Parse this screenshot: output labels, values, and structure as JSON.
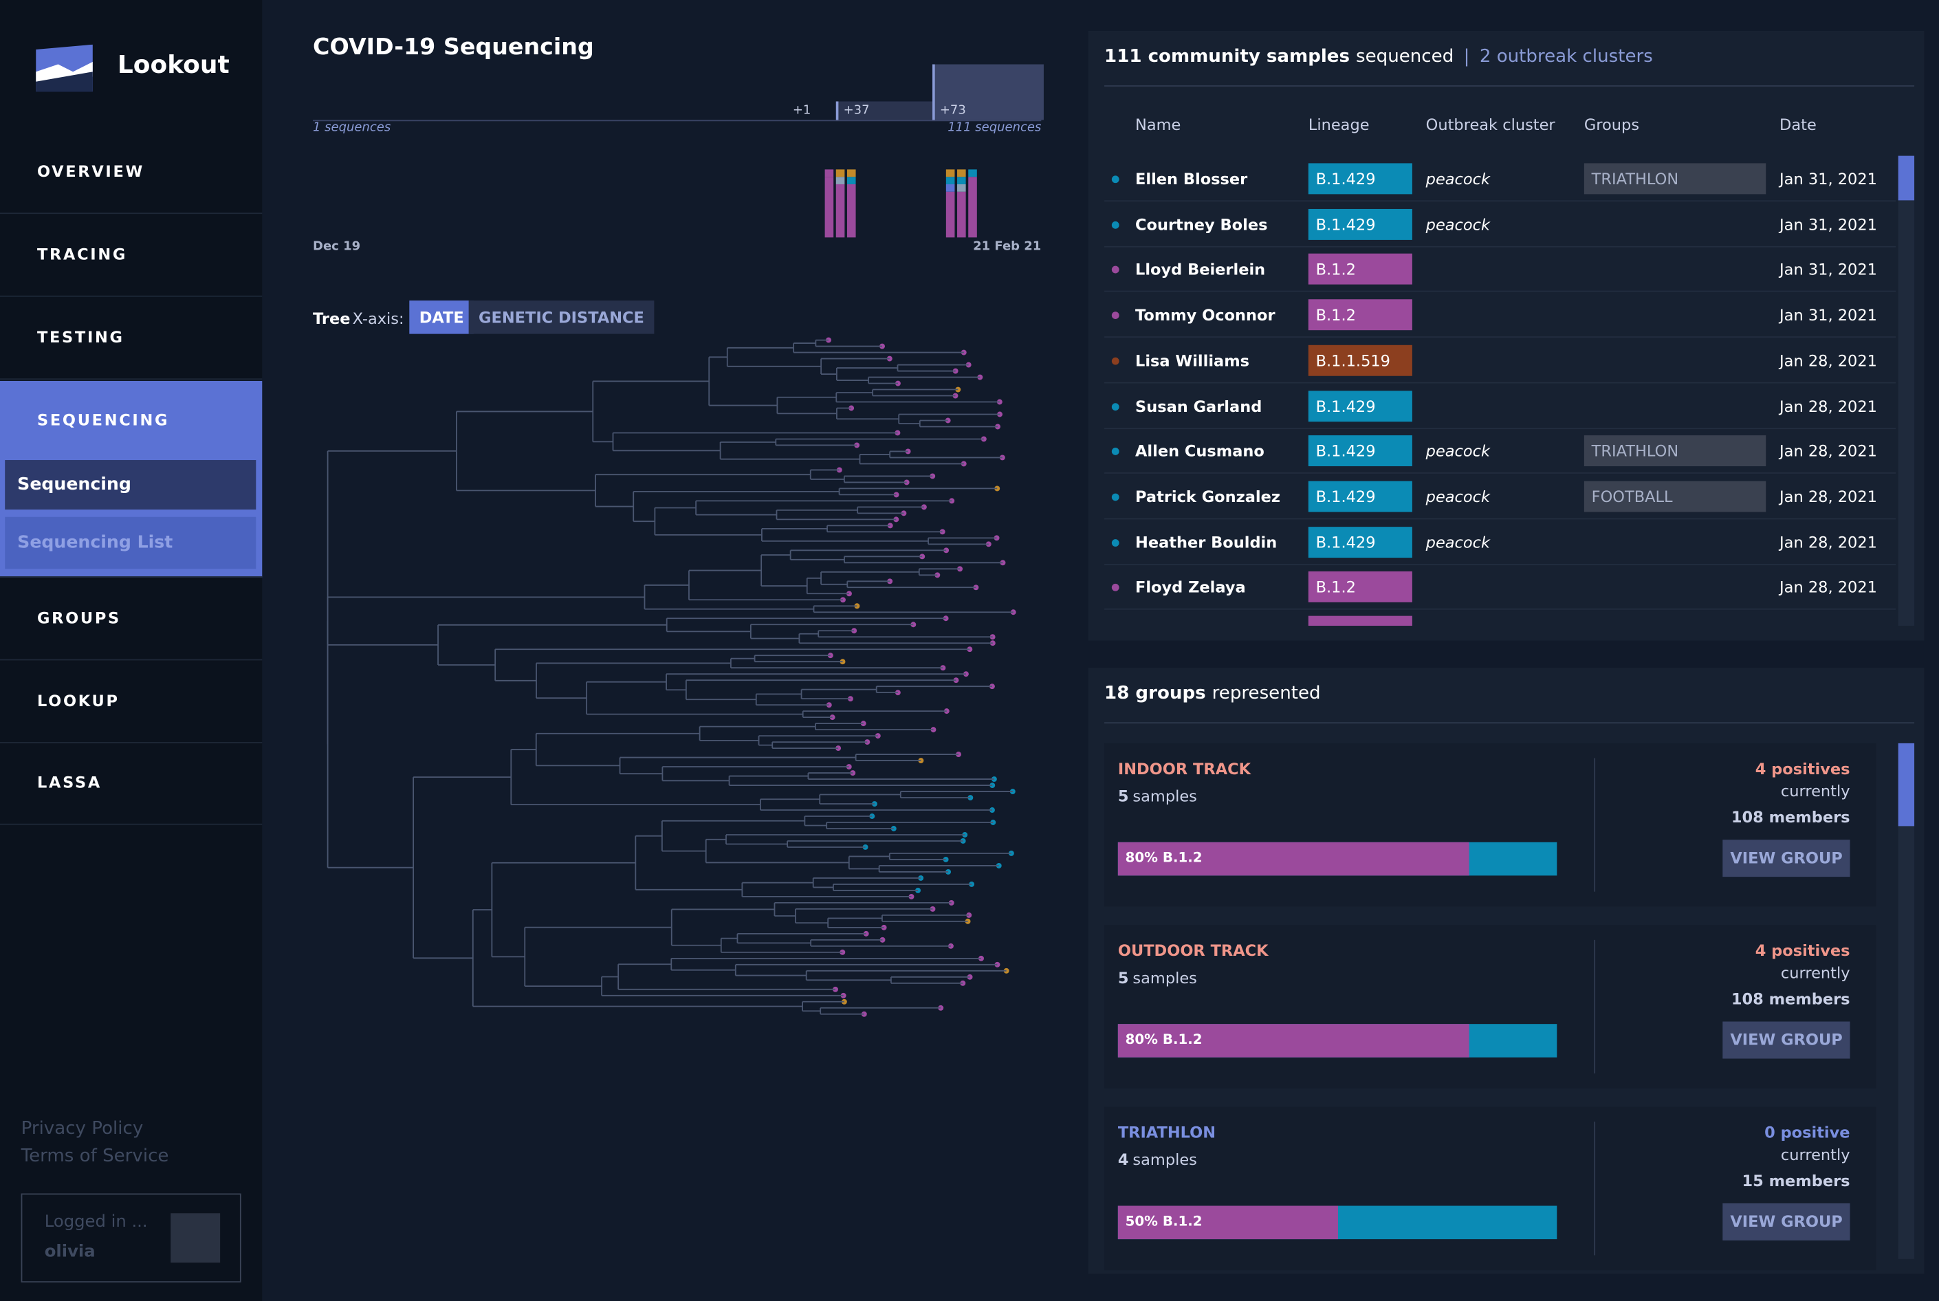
{
  "sidebar": {
    "brand": "Lookout",
    "nav": [
      "OVERVIEW",
      "TRACING",
      "TESTING",
      "SEQUENCING",
      "GROUPS",
      "LOOKUP",
      "LASSA"
    ],
    "active": 3,
    "subnav": [
      "Sequencing",
      "Sequencing List"
    ],
    "footer": [
      "Privacy Policy",
      "Terms of Service"
    ],
    "login": {
      "status": "Logged in ...",
      "user": "olivia"
    }
  },
  "main": {
    "title": "COVID-19 Sequencing",
    "timeline": {
      "increments": [
        "+1",
        "+37",
        "+73"
      ],
      "start_count": "1 sequences",
      "end_count": "111 sequences",
      "start_date": "Dec 19",
      "end_date": "21 Feb 21"
    },
    "tree": {
      "label": "Tree",
      "axis_label": "X-axis:",
      "options": [
        "DATE",
        "GENETIC DISTANCE"
      ],
      "selected": 0
    }
  },
  "samples": {
    "header": {
      "count": "111 community samples",
      "suffix": "sequenced",
      "separator": "|",
      "clusters": "2 outbreak clusters"
    },
    "columns": [
      "Name",
      "Lineage",
      "Outbreak cluster",
      "Groups",
      "Date"
    ],
    "rows": [
      {
        "name": "Ellen Blosser",
        "lineage": "B.1.429",
        "color": "#0b8bb5",
        "cluster": "peacock",
        "group": "TRIATHLON",
        "date": "Jan 31, 2021"
      },
      {
        "name": "Courtney Boles",
        "lineage": "B.1.429",
        "color": "#0b8bb5",
        "cluster": "peacock",
        "date": "Jan 31, 2021"
      },
      {
        "name": "Lloyd Beierlein",
        "lineage": "B.1.2",
        "color": "#9b4a9c",
        "date": "Jan 31, 2021"
      },
      {
        "name": "Tommy Oconnor",
        "lineage": "B.1.2",
        "color": "#9b4a9c",
        "date": "Jan 31, 2021"
      },
      {
        "name": "Lisa Williams",
        "lineage": "B.1.1.519",
        "color": "#8c3f1f",
        "date": "Jan 28, 2021"
      },
      {
        "name": "Susan Garland",
        "lineage": "B.1.429",
        "color": "#0b8bb5",
        "date": "Jan 28, 2021"
      },
      {
        "name": "Allen Cusmano",
        "lineage": "B.1.429",
        "color": "#0b8bb5",
        "cluster": "peacock",
        "group": "TRIATHLON",
        "date": "Jan 28, 2021"
      },
      {
        "name": "Patrick Gonzalez",
        "lineage": "B.1.429",
        "color": "#0b8bb5",
        "cluster": "peacock",
        "group": "FOOTBALL",
        "date": "Jan 28, 2021"
      },
      {
        "name": "Heather Bouldin",
        "lineage": "B.1.429",
        "color": "#0b8bb5",
        "cluster": "peacock",
        "date": "Jan 28, 2021"
      },
      {
        "name": "Floyd Zelaya",
        "lineage": "B.1.2",
        "color": "#9b4a9c",
        "date": "Jan 28, 2021"
      }
    ]
  },
  "groups": {
    "header": {
      "count": "18 groups",
      "suffix": "represented"
    },
    "items": [
      {
        "name": "INDOOR TRACK",
        "name_color": "#f0968a",
        "sample_count": "5",
        "sample_label": "samples",
        "positives": "4 positives",
        "status": "currently",
        "members": "108 members",
        "share": 80,
        "share_label": "80% B.1.2",
        "action": "VIEW GROUP"
      },
      {
        "name": "OUTDOOR TRACK",
        "name_color": "#f0968a",
        "sample_count": "5",
        "sample_label": "samples",
        "positives": "4 positives",
        "status": "currently",
        "members": "108 members",
        "share": 80,
        "share_label": "80% B.1.2",
        "action": "VIEW GROUP"
      },
      {
        "name": "TRIATHLON",
        "name_color": "#7a8fe0",
        "sample_count": "4",
        "sample_label": "samples",
        "positives": "0 positive",
        "status": "currently",
        "members": "15 members",
        "share": 50,
        "share_label": "50% B.1.2",
        "action": "VIEW GROUP"
      }
    ]
  }
}
